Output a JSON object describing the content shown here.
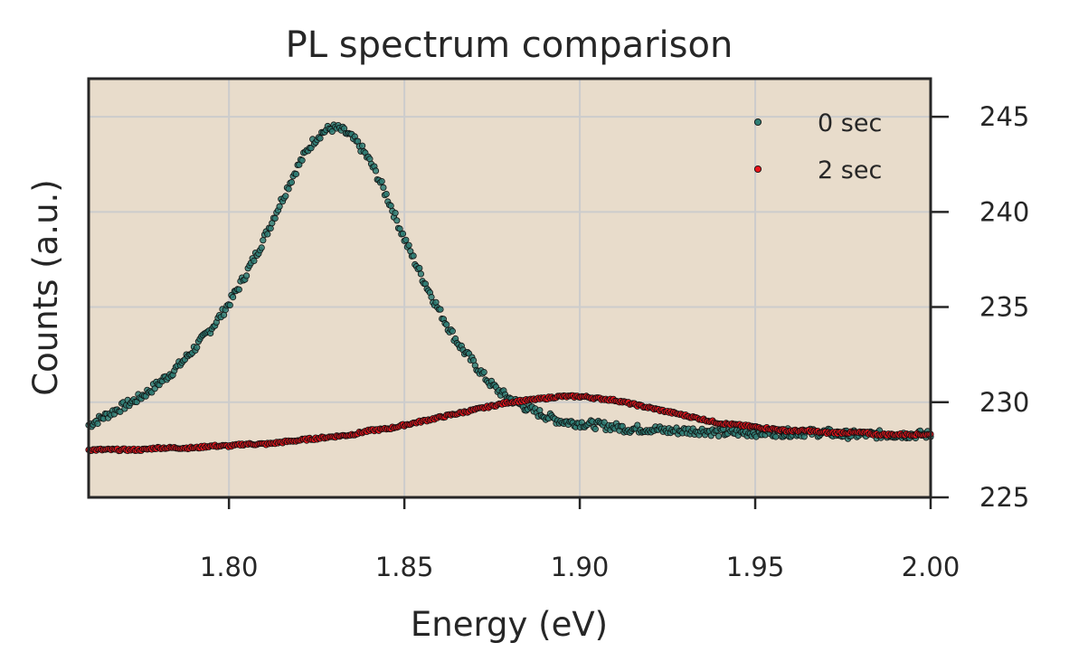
{
  "chart_data": {
    "type": "scatter",
    "title": "PL spectrum comparison",
    "xlabel": "Energy (eV)",
    "ylabel": "Counts (a.u.)",
    "xlim": [
      1.76,
      2.0
    ],
    "ylim": [
      225,
      247
    ],
    "x_ticks": [
      1.8,
      1.85,
      1.9,
      1.95,
      2.0
    ],
    "x_tick_labels": [
      "1.80",
      "1.85",
      "1.90",
      "1.95",
      "2.00"
    ],
    "y_ticks": [
      225,
      230,
      235,
      240,
      245
    ],
    "y_tick_labels": [
      "225",
      "230",
      "235",
      "240",
      "245"
    ],
    "y_axis_side": "right",
    "grid": true,
    "plot_background": "#e8dccb",
    "legend_position": "top-right",
    "series": [
      {
        "name": "0 sec",
        "color": "#2e7d74",
        "x": [
          1.76,
          1.765,
          1.77,
          1.775,
          1.78,
          1.785,
          1.79,
          1.795,
          1.8,
          1.805,
          1.81,
          1.815,
          1.82,
          1.825,
          1.83,
          1.835,
          1.84,
          1.845,
          1.85,
          1.855,
          1.86,
          1.865,
          1.87,
          1.875,
          1.88,
          1.885,
          1.89,
          1.895,
          1.9,
          1.905,
          1.91,
          1.915,
          1.92,
          1.925,
          1.93,
          1.935,
          1.94,
          1.945,
          1.95,
          1.955,
          1.96,
          1.965,
          1.97,
          1.975,
          1.98,
          1.985,
          1.99,
          1.995,
          2.0
        ],
        "y": [
          228.8,
          229.3,
          229.8,
          230.3,
          231.0,
          231.8,
          232.8,
          233.9,
          235.2,
          236.8,
          238.6,
          240.6,
          242.5,
          243.9,
          244.4,
          243.9,
          242.7,
          240.8,
          238.6,
          236.6,
          234.8,
          233.2,
          232.0,
          230.9,
          230.2,
          229.7,
          229.3,
          229.0,
          228.9,
          228.8,
          228.7,
          228.6,
          228.6,
          228.5,
          228.5,
          228.5,
          228.4,
          228.4,
          228.4,
          228.4,
          228.4,
          228.4,
          228.4,
          228.3,
          228.3,
          228.3,
          228.3,
          228.3,
          228.3
        ]
      },
      {
        "name": "2 sec",
        "color": "#e8141c",
        "x": [
          1.76,
          1.765,
          1.77,
          1.775,
          1.78,
          1.785,
          1.79,
          1.795,
          1.8,
          1.805,
          1.81,
          1.815,
          1.82,
          1.825,
          1.83,
          1.835,
          1.84,
          1.845,
          1.85,
          1.855,
          1.86,
          1.865,
          1.87,
          1.875,
          1.88,
          1.885,
          1.89,
          1.895,
          1.9,
          1.905,
          1.91,
          1.915,
          1.92,
          1.925,
          1.93,
          1.935,
          1.94,
          1.945,
          1.95,
          1.955,
          1.96,
          1.965,
          1.97,
          1.975,
          1.98,
          1.985,
          1.99,
          1.995,
          2.0
        ],
        "y": [
          227.5,
          227.5,
          227.5,
          227.5,
          227.6,
          227.6,
          227.6,
          227.7,
          227.7,
          227.8,
          227.8,
          227.9,
          228.0,
          228.1,
          228.2,
          228.3,
          228.5,
          228.6,
          228.8,
          229.0,
          229.2,
          229.4,
          229.6,
          229.8,
          230.0,
          230.1,
          230.2,
          230.3,
          230.3,
          230.2,
          230.1,
          229.9,
          229.7,
          229.5,
          229.3,
          229.1,
          228.9,
          228.8,
          228.7,
          228.6,
          228.5,
          228.5,
          228.4,
          228.4,
          228.4,
          228.3,
          228.3,
          228.3,
          228.3
        ]
      }
    ]
  }
}
